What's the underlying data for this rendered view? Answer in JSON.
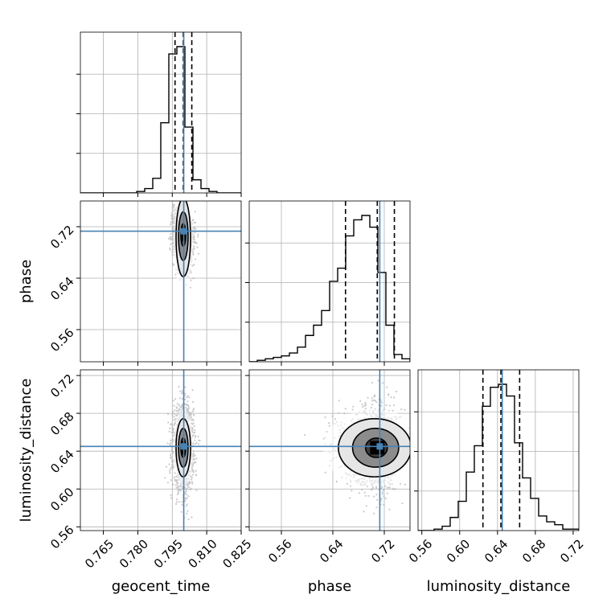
{
  "chart_data": {
    "type": "corner",
    "parameters": [
      {
        "key": "geocent_time",
        "label": "geocent_time",
        "range": [
          0.755,
          0.825
        ],
        "ticks": [
          0.765,
          0.78,
          0.795,
          0.81,
          0.825
        ],
        "tick_labels": [
          "0.765",
          "0.780",
          "0.795",
          "0.810",
          "0.825"
        ],
        "truth": 0.8,
        "quantiles": [
          0.7962,
          0.7998,
          0.8035
        ],
        "hist_edges": [
          0.755,
          0.7585,
          0.762,
          0.7655,
          0.769,
          0.7725,
          0.776,
          0.7795,
          0.783,
          0.7865,
          0.79,
          0.7935,
          0.797,
          0.8005,
          0.804,
          0.8075,
          0.811,
          0.8145,
          0.818,
          0.8215,
          0.825
        ],
        "hist_counts": [
          0,
          0,
          0,
          0,
          0,
          0,
          0,
          0.01,
          0.03,
          0.1,
          0.48,
          0.95,
          1.0,
          0.45,
          0.09,
          0.03,
          0.01,
          0,
          0,
          0
        ]
      },
      {
        "key": "phase",
        "label": "phase",
        "range": [
          0.51,
          0.76
        ],
        "ticks": [
          0.56,
          0.64,
          0.72
        ],
        "tick_labels": [
          "0.56",
          "0.64",
          "0.72"
        ],
        "truth": 0.713,
        "quantiles": [
          0.6597,
          0.7091,
          0.7357
        ],
        "hist_edges": [
          0.51,
          0.5225,
          0.535,
          0.5475,
          0.56,
          0.5725,
          0.585,
          0.5975,
          0.61,
          0.6225,
          0.635,
          0.6475,
          0.66,
          0.6725,
          0.685,
          0.6975,
          0.71,
          0.7225,
          0.735,
          0.7475,
          0.76
        ],
        "hist_counts": [
          0,
          0.01,
          0.02,
          0.03,
          0.04,
          0.06,
          0.1,
          0.18,
          0.25,
          0.35,
          0.55,
          0.64,
          0.86,
          0.97,
          1.0,
          0.92,
          0.61,
          0.25,
          0.05,
          0.02
        ]
      },
      {
        "key": "luminosity_distance",
        "label": "luminosity_distance",
        "range": [
          0.556,
          0.726
        ],
        "ticks": [
          0.56,
          0.6,
          0.64,
          0.68,
          0.72
        ],
        "tick_labels": [
          "0.56",
          "0.60",
          "0.64",
          "0.68",
          "0.72"
        ],
        "truth": 0.645,
        "quantiles": [
          0.6246,
          0.6436,
          0.6634
        ],
        "hist_edges": [
          0.556,
          0.5645,
          0.573,
          0.5815,
          0.59,
          0.5985,
          0.607,
          0.6155,
          0.624,
          0.6325,
          0.641,
          0.6495,
          0.658,
          0.6665,
          0.675,
          0.6835,
          0.692,
          0.7005,
          0.709,
          0.7175,
          0.726
        ],
        "hist_counts": [
          0,
          0,
          0.01,
          0.03,
          0.09,
          0.2,
          0.4,
          0.58,
          0.85,
          0.98,
          1.0,
          0.92,
          0.6,
          0.36,
          0.22,
          0.1,
          0.06,
          0.04,
          0.01,
          0.01
        ]
      }
    ],
    "histogram_y_ticks": [
      0.25,
      0.5,
      0.75
    ],
    "truth_color": "#4682b4",
    "grid": true,
    "scatter_color": "#b4b4b4",
    "line_color": "#000000",
    "density_levels": [
      0.118,
      0.393,
      0.675,
      0.865
    ],
    "posteriors": [
      {
        "pair": [
          "geocent_time",
          "phase"
        ],
        "mean": [
          0.7998,
          0.7091
        ],
        "sd": [
          0.0021,
          0.032
        ],
        "corr": -0.15,
        "skew_y": -2.5
      },
      {
        "pair": [
          "geocent_time",
          "luminosity_distance"
        ],
        "mean": [
          0.7998,
          0.6436
        ],
        "sd": [
          0.0021,
          0.0205
        ],
        "corr": 0.0,
        "skew_y": 0
      },
      {
        "pair": [
          "phase",
          "luminosity_distance"
        ],
        "mean": [
          0.7091,
          0.6436
        ],
        "sd": [
          0.032,
          0.0205
        ],
        "corr": 0.0,
        "skew_y": 0,
        "skew_x": -2.5
      }
    ]
  }
}
